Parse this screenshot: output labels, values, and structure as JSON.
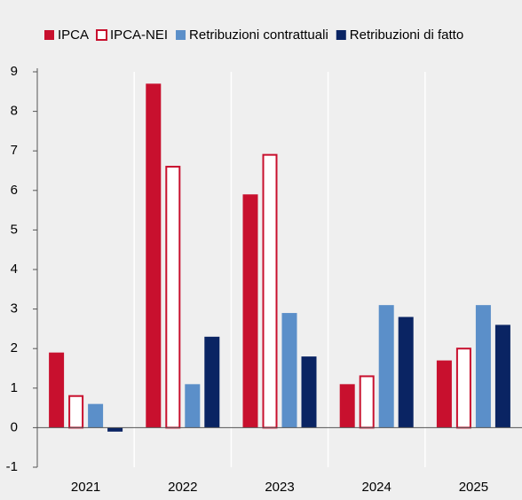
{
  "chart_data": {
    "type": "bar",
    "categories": [
      "2021",
      "2022",
      "2023",
      "2024",
      "2025"
    ],
    "series": [
      {
        "name": "IPCA",
        "color": "#c8102e",
        "values": [
          1.9,
          8.7,
          5.9,
          1.1,
          1.7
        ]
      },
      {
        "name": "IPCA-NEI",
        "color": "#c8102e",
        "fill": "#ffffff",
        "values": [
          0.8,
          6.6,
          6.9,
          1.3,
          2.0
        ]
      },
      {
        "name": "Retribuzioni contrattuali",
        "color": "#5b8fc9",
        "values": [
          0.6,
          1.1,
          2.9,
          3.1,
          3.1
        ]
      },
      {
        "name": "Retribuzioni di fatto",
        "color": "#0a2463",
        "values": [
          -0.1,
          2.3,
          1.8,
          2.8,
          2.6
        ]
      }
    ],
    "ylim": [
      -1,
      9
    ],
    "yticks": [
      -1,
      0,
      1,
      2,
      3,
      4,
      5,
      6,
      7,
      8,
      9
    ]
  }
}
